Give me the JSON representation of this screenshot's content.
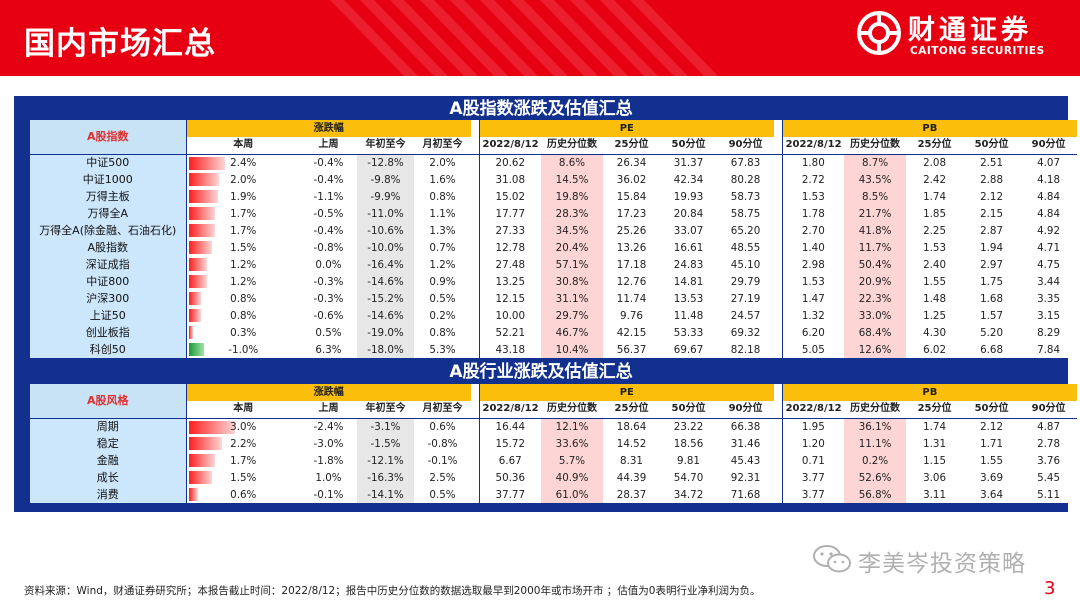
{
  "header": {
    "title": "国内市场汇总",
    "brand_cn": "财通证券",
    "brand_en": "CAITONG SECURITIES"
  },
  "colors": {
    "brand_red": "#e60012",
    "panel_blue": "#12308e",
    "header_gold": "#fbbf0b",
    "name_blue": "#cce6fb",
    "pct_pink": "#fdd5d5",
    "ytd_gray": "#e7e7e7",
    "up_red": "#ff1e1e",
    "down_green": "#1e9a3a"
  },
  "index_section": {
    "title": "A股指数涨跌及估值汇总",
    "row_header": "A股指数",
    "groups": {
      "change": "涨跌幅",
      "pe": "PE",
      "pb": "PB"
    },
    "change_cols": [
      "本周",
      "上周",
      "年初至今",
      "月初至今"
    ],
    "val_cols": [
      "2022/8/12",
      "历史分位数",
      "25分位",
      "50分位",
      "90分位"
    ],
    "rows": [
      {
        "name": "中证500",
        "week": "2.4%",
        "week_pct": 2.4,
        "last": "-0.4%",
        "ytd": "-12.8%",
        "mtd": "2.0%",
        "pe": [
          "20.62",
          "8.6%",
          "26.34",
          "31.37",
          "67.83"
        ],
        "pb": [
          "1.80",
          "8.7%",
          "2.08",
          "2.51",
          "4.07"
        ]
      },
      {
        "name": "中证1000",
        "week": "2.0%",
        "week_pct": 2.0,
        "last": "-0.4%",
        "ytd": "-9.8%",
        "mtd": "1.6%",
        "pe": [
          "31.08",
          "14.5%",
          "36.02",
          "42.34",
          "80.28"
        ],
        "pb": [
          "2.72",
          "43.5%",
          "2.42",
          "2.88",
          "4.18"
        ]
      },
      {
        "name": "万得主板",
        "week": "1.9%",
        "week_pct": 1.9,
        "last": "-1.1%",
        "ytd": "-9.9%",
        "mtd": "0.8%",
        "pe": [
          "15.02",
          "19.8%",
          "15.84",
          "19.93",
          "58.73"
        ],
        "pb": [
          "1.53",
          "8.5%",
          "1.74",
          "2.12",
          "4.84"
        ]
      },
      {
        "name": "万得全A",
        "week": "1.7%",
        "week_pct": 1.7,
        "last": "-0.5%",
        "ytd": "-11.0%",
        "mtd": "1.1%",
        "pe": [
          "17.77",
          "28.3%",
          "17.23",
          "20.84",
          "58.75"
        ],
        "pb": [
          "1.78",
          "21.7%",
          "1.85",
          "2.15",
          "4.84"
        ]
      },
      {
        "name": "万得全A(除金融、石油石化)",
        "week": "1.7%",
        "week_pct": 1.7,
        "last": "-0.4%",
        "ytd": "-10.6%",
        "mtd": "1.3%",
        "pe": [
          "27.33",
          "34.5%",
          "25.26",
          "33.07",
          "65.20"
        ],
        "pb": [
          "2.70",
          "41.8%",
          "2.25",
          "2.87",
          "4.92"
        ]
      },
      {
        "name": "A股指数",
        "week": "1.5%",
        "week_pct": 1.5,
        "last": "-0.8%",
        "ytd": "-10.0%",
        "mtd": "0.7%",
        "pe": [
          "12.78",
          "20.4%",
          "13.26",
          "16.61",
          "48.55"
        ],
        "pb": [
          "1.40",
          "11.7%",
          "1.53",
          "1.94",
          "4.71"
        ]
      },
      {
        "name": "深证成指",
        "week": "1.2%",
        "week_pct": 1.2,
        "last": "0.0%",
        "ytd": "-16.4%",
        "mtd": "1.2%",
        "pe": [
          "27.48",
          "57.1%",
          "17.18",
          "24.83",
          "45.10"
        ],
        "pb": [
          "2.98",
          "50.4%",
          "2.40",
          "2.97",
          "4.75"
        ]
      },
      {
        "name": "中证800",
        "week": "1.2%",
        "week_pct": 1.2,
        "last": "-0.3%",
        "ytd": "-14.6%",
        "mtd": "0.9%",
        "pe": [
          "13.25",
          "30.8%",
          "12.76",
          "14.81",
          "29.79"
        ],
        "pb": [
          "1.53",
          "20.9%",
          "1.55",
          "1.75",
          "3.44"
        ]
      },
      {
        "name": "沪深300",
        "week": "0.8%",
        "week_pct": 0.8,
        "last": "-0.3%",
        "ytd": "-15.2%",
        "mtd": "0.5%",
        "pe": [
          "12.15",
          "31.1%",
          "11.74",
          "13.53",
          "27.19"
        ],
        "pb": [
          "1.47",
          "22.3%",
          "1.48",
          "1.68",
          "3.35"
        ]
      },
      {
        "name": "上证50",
        "week": "0.8%",
        "week_pct": 0.8,
        "last": "-0.6%",
        "ytd": "-14.6%",
        "mtd": "0.2%",
        "pe": [
          "10.00",
          "29.7%",
          "9.76",
          "11.48",
          "24.57"
        ],
        "pb": [
          "1.32",
          "33.0%",
          "1.25",
          "1.57",
          "3.15"
        ]
      },
      {
        "name": "创业板指",
        "week": "0.3%",
        "week_pct": 0.3,
        "last": "0.5%",
        "ytd": "-19.0%",
        "mtd": "0.8%",
        "pe": [
          "52.21",
          "46.7%",
          "42.15",
          "53.33",
          "69.32"
        ],
        "pb": [
          "6.20",
          "68.4%",
          "4.30",
          "5.20",
          "8.29"
        ]
      },
      {
        "name": "科创50",
        "week": "-1.0%",
        "week_pct": -1.0,
        "last": "6.3%",
        "ytd": "-18.0%",
        "mtd": "5.3%",
        "pe": [
          "43.18",
          "10.4%",
          "56.37",
          "69.67",
          "82.18"
        ],
        "pb": [
          "5.05",
          "12.6%",
          "6.02",
          "6.68",
          "7.84"
        ]
      }
    ]
  },
  "style_section": {
    "title": "A股行业涨跌及估值汇总",
    "row_header": "A股风格",
    "groups": {
      "change": "涨跌幅",
      "pe": "PE",
      "pb": "PB"
    },
    "change_cols": [
      "本周",
      "上周",
      "年初至今",
      "月初至今"
    ],
    "val_cols": [
      "2022/8/12",
      "历史分位数",
      "25分位",
      "50分位",
      "90分位"
    ],
    "rows": [
      {
        "name": "周期",
        "week": "3.0%",
        "week_pct": 3.0,
        "last": "-2.4%",
        "ytd": "-3.1%",
        "mtd": "0.6%",
        "pe": [
          "16.44",
          "12.1%",
          "18.64",
          "23.22",
          "66.38"
        ],
        "pb": [
          "1.95",
          "36.1%",
          "1.74",
          "2.12",
          "4.87"
        ]
      },
      {
        "name": "稳定",
        "week": "2.2%",
        "week_pct": 2.2,
        "last": "-3.0%",
        "ytd": "-1.5%",
        "mtd": "-0.8%",
        "pe": [
          "15.72",
          "33.6%",
          "14.52",
          "18.56",
          "31.46"
        ],
        "pb": [
          "1.20",
          "11.1%",
          "1.31",
          "1.71",
          "2.78"
        ]
      },
      {
        "name": "金融",
        "week": "1.7%",
        "week_pct": 1.7,
        "last": "-1.8%",
        "ytd": "-12.1%",
        "mtd": "-0.1%",
        "pe": [
          "6.67",
          "5.7%",
          "8.31",
          "9.81",
          "45.43"
        ],
        "pb": [
          "0.71",
          "0.2%",
          "1.15",
          "1.55",
          "3.76"
        ]
      },
      {
        "name": "成长",
        "week": "1.5%",
        "week_pct": 1.5,
        "last": "1.0%",
        "ytd": "-16.3%",
        "mtd": "2.5%",
        "pe": [
          "50.36",
          "40.9%",
          "44.39",
          "54.70",
          "92.31"
        ],
        "pb": [
          "3.77",
          "52.6%",
          "3.06",
          "3.69",
          "5.45"
        ]
      },
      {
        "name": "消费",
        "week": "0.6%",
        "week_pct": 0.6,
        "last": "-0.1%",
        "ytd": "-14.1%",
        "mtd": "0.5%",
        "pe": [
          "37.77",
          "61.0%",
          "28.37",
          "34.72",
          "71.68"
        ],
        "pb": [
          "3.77",
          "56.8%",
          "3.11",
          "3.64",
          "5.11"
        ]
      }
    ]
  },
  "footer": {
    "note": "资料来源：Wind，财通证券研究所；本报告截止时间：2022/8/12；报告中历史分位数的数据选取最早到2000年或市场开市 ；估值为0表明行业净利润为负。",
    "watermark": "李美岑投资策略",
    "page_number": "3"
  }
}
